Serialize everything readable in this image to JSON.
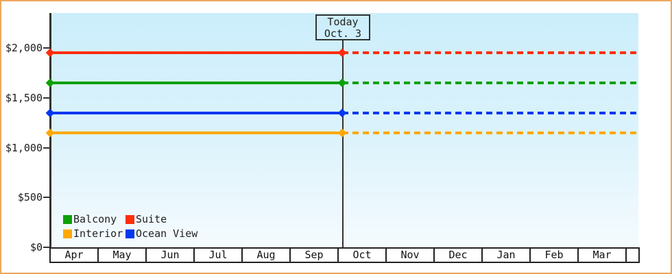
{
  "frame": {
    "border_color": "#eca85e",
    "background_color": "#ffffff",
    "plot_gradient_top": "#cbeefb",
    "plot_gradient_bottom": "#f5fbfe",
    "axis_color": "#333333"
  },
  "chart_data": {
    "type": "line",
    "title": "",
    "xlabel": "",
    "ylabel": "",
    "x_categories": [
      "Apr",
      "May",
      "Jun",
      "Jul",
      "Aug",
      "Sep",
      "Oct",
      "Nov",
      "Dec",
      "Jan",
      "Feb",
      "Mar"
    ],
    "y_tick_labels": [
      "$0",
      "$500",
      "$1,000",
      "$1,500",
      "$2,000"
    ],
    "y_tick_values": [
      0,
      500,
      1000,
      1500,
      2000
    ],
    "ylim": [
      0,
      2350
    ],
    "grid": false,
    "today_marker": {
      "line1": "Today",
      "line2": "Oct. 3",
      "month": "Oct",
      "day": 3
    },
    "series": [
      {
        "name": "Suite",
        "color": "#ff2d0a",
        "value": 1950,
        "solid_until": "Oct 3",
        "dashed_after": true
      },
      {
        "name": "Balcony",
        "color": "#0ea00a",
        "value": 1650,
        "solid_until": "Oct 3",
        "dashed_after": true
      },
      {
        "name": "Ocean View",
        "color": "#0038f0",
        "value": 1350,
        "solid_until": "Oct 3",
        "dashed_after": true
      },
      {
        "name": "Interior",
        "color": "#ffa800",
        "value": 1150,
        "solid_until": "Oct 3",
        "dashed_after": true
      }
    ],
    "legend": {
      "position": "bottom-left",
      "items": [
        {
          "label": "Balcony",
          "color": "#0ea00a"
        },
        {
          "label": "Suite",
          "color": "#ff2d0a"
        },
        {
          "label": "Interior",
          "color": "#ffa800"
        },
        {
          "label": "Ocean View",
          "color": "#0038f0"
        }
      ]
    }
  }
}
